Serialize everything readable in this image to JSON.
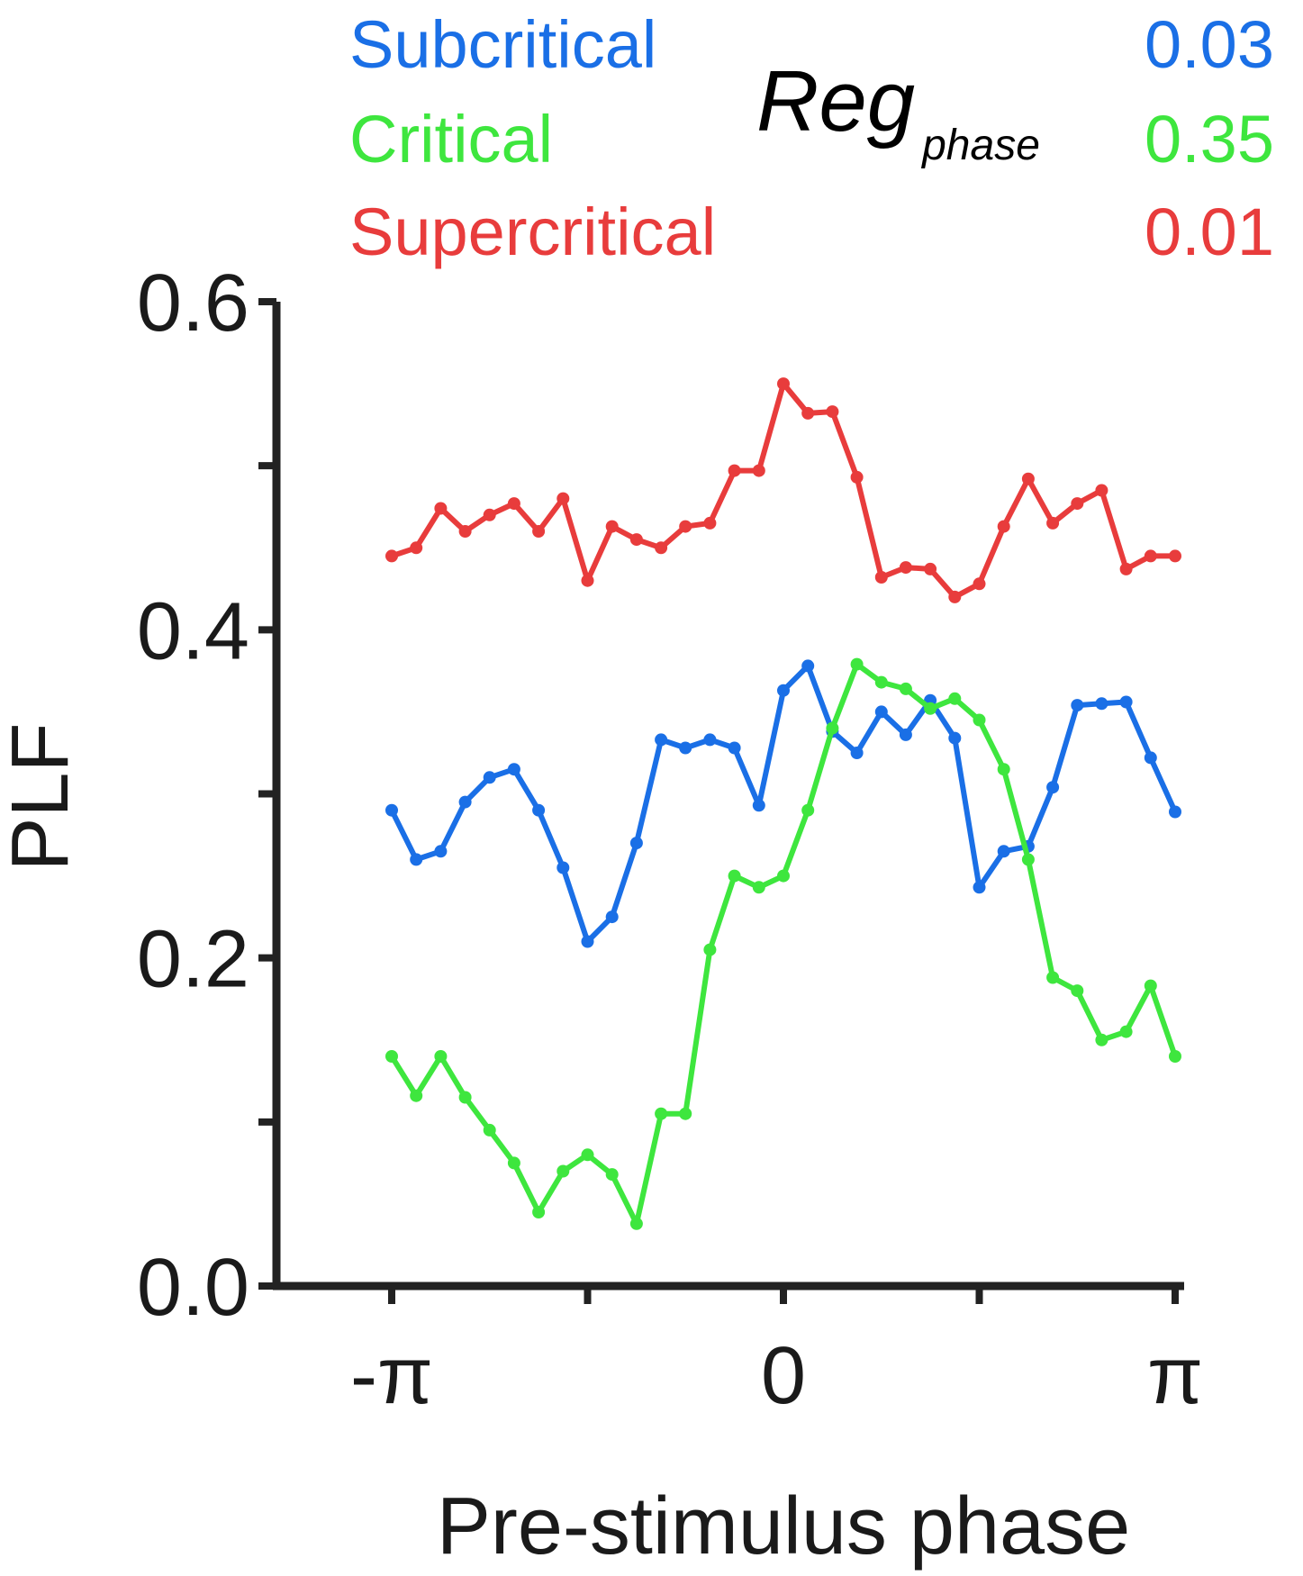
{
  "chart_data": {
    "type": "line",
    "xlabel": "Pre-stimulus phase",
    "ylabel": "PLF",
    "ylim": [
      0,
      0.6
    ],
    "xlim": [
      -3.14159,
      3.14159
    ],
    "yticks": [
      {
        "value": 0.0,
        "label": "0.0"
      },
      {
        "value": 0.2,
        "label": "0.2"
      },
      {
        "value": 0.4,
        "label": "0.4"
      },
      {
        "value": 0.6,
        "label": "0.6"
      }
    ],
    "yminor_ticks": [
      0.1,
      0.3,
      0.5
    ],
    "xticks": [
      {
        "value": -3.14159,
        "label": "-π"
      },
      {
        "value": -1.5708,
        "label": ""
      },
      {
        "value": 0,
        "label": "0"
      },
      {
        "value": 1.5708,
        "label": ""
      },
      {
        "value": 3.14159,
        "label": "π"
      }
    ],
    "x": [
      -3.1416,
      -2.9452,
      -2.7489,
      -2.5525,
      -2.3562,
      -2.1598,
      -1.9635,
      -1.7671,
      -1.5708,
      -1.3744,
      -1.1781,
      -0.9817,
      -0.7854,
      -0.589,
      -0.3927,
      -0.1963,
      0,
      0.1963,
      0.3927,
      0.589,
      0.7854,
      0.9817,
      1.1781,
      1.3744,
      1.5708,
      1.7671,
      1.9635,
      2.1598,
      2.3562,
      2.5525,
      2.7489,
      2.9452,
      3.1416
    ],
    "stat_header": "Reg",
    "stat_header_sub": "phase",
    "series": [
      {
        "name": "Subcritical",
        "stat": "0.03",
        "color": "#1a6fe6",
        "values": [
          0.29,
          0.26,
          0.265,
          0.295,
          0.31,
          0.315,
          0.29,
          0.255,
          0.21,
          0.225,
          0.27,
          0.333,
          0.328,
          0.333,
          0.328,
          0.293,
          0.363,
          0.378,
          0.338,
          0.325,
          0.35,
          0.336,
          0.357,
          0.334,
          0.243,
          0.265,
          0.268,
          0.304,
          0.354,
          0.355,
          0.356,
          0.322,
          0.289
        ]
      },
      {
        "name": "Critical",
        "stat": "0.35",
        "color": "#3ee63e",
        "values": [
          0.14,
          0.116,
          0.14,
          0.115,
          0.095,
          0.075,
          0.045,
          0.07,
          0.08,
          0.068,
          0.038,
          0.105,
          0.105,
          0.205,
          0.25,
          0.243,
          0.25,
          0.29,
          0.34,
          0.379,
          0.368,
          0.364,
          0.352,
          0.358,
          0.345,
          0.315,
          0.26,
          0.188,
          0.18,
          0.15,
          0.155,
          0.183,
          0.14
        ]
      },
      {
        "name": "Supercritical",
        "stat": "0.01",
        "color": "#e83c3c",
        "values": [
          0.445,
          0.45,
          0.474,
          0.46,
          0.47,
          0.477,
          0.46,
          0.48,
          0.43,
          0.463,
          0.455,
          0.45,
          0.463,
          0.465,
          0.497,
          0.497,
          0.55,
          0.532,
          0.533,
          0.493,
          0.432,
          0.438,
          0.437,
          0.42,
          0.428,
          0.463,
          0.492,
          0.465,
          0.477,
          0.485,
          0.437,
          0.445,
          0.445
        ]
      }
    ]
  }
}
